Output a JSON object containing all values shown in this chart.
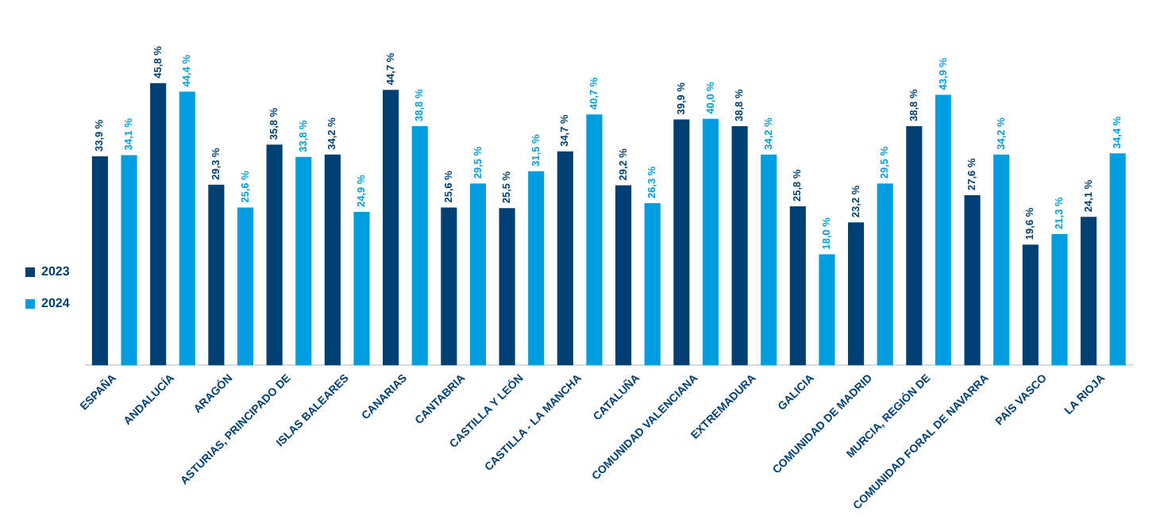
{
  "chart_data": {
    "type": "bar",
    "categories": [
      "ESPAÑA",
      "ANDALUCÍA",
      "ARAGÓN",
      "ASTURIAS, PRINCIPADO DE",
      "ISLAS BALEARES",
      "CANARIAS",
      "CANTABRIA",
      "CASTILLA Y LEÓN",
      "CASTILLA - LA MANCHA",
      "CATALUÑA",
      "COMUNIDAD VALENCIANA",
      "EXTREMADURA",
      "GALICIA",
      "COMUNIDAD DE MADRID",
      "MURCIA, REGIÓN DE",
      "COMUNIDAD FORAL DE NAVARRA",
      "PAÍS VASCO",
      "LA RIOJA"
    ],
    "series": [
      {
        "name": "2023",
        "color": "#003f72",
        "values": [
          33.9,
          45.8,
          29.3,
          35.8,
          34.2,
          44.7,
          25.6,
          25.5,
          34.7,
          29.2,
          39.9,
          38.8,
          25.8,
          23.2,
          38.8,
          27.6,
          19.6,
          24.1
        ],
        "value_labels": [
          "33,9 %",
          "45,8 %",
          "29,3 %",
          "35,8 %",
          "34,2 %",
          "44,7 %",
          "25,6 %",
          "25,5 %",
          "34,7 %",
          "29,2 %",
          "39,9 %",
          "38,8 %",
          "25,8 %",
          "23,2 %",
          "38,8 %",
          "27,6 %",
          "19,6 %",
          "24,1 %"
        ]
      },
      {
        "name": "2024",
        "color": "#009ee0",
        "values": [
          34.1,
          44.4,
          25.6,
          33.8,
          24.9,
          38.8,
          29.5,
          31.5,
          40.7,
          26.3,
          40.0,
          34.2,
          18.0,
          29.5,
          43.9,
          34.2,
          21.3,
          34.4
        ],
        "value_labels": [
          "34,1 %",
          "44,4 %",
          "25,6 %",
          "33,8 %",
          "24,9 %",
          "38,8 %",
          "29,5 %",
          "31,5 %",
          "40,7 %",
          "26,3 %",
          "40,0 %",
          "34,2 %",
          "18,0 %",
          "29,5 %",
          "43,9 %",
          "34,2 %",
          "21,3 %",
          "34,4 %"
        ]
      }
    ],
    "legend": "left",
    "grid": false
  }
}
